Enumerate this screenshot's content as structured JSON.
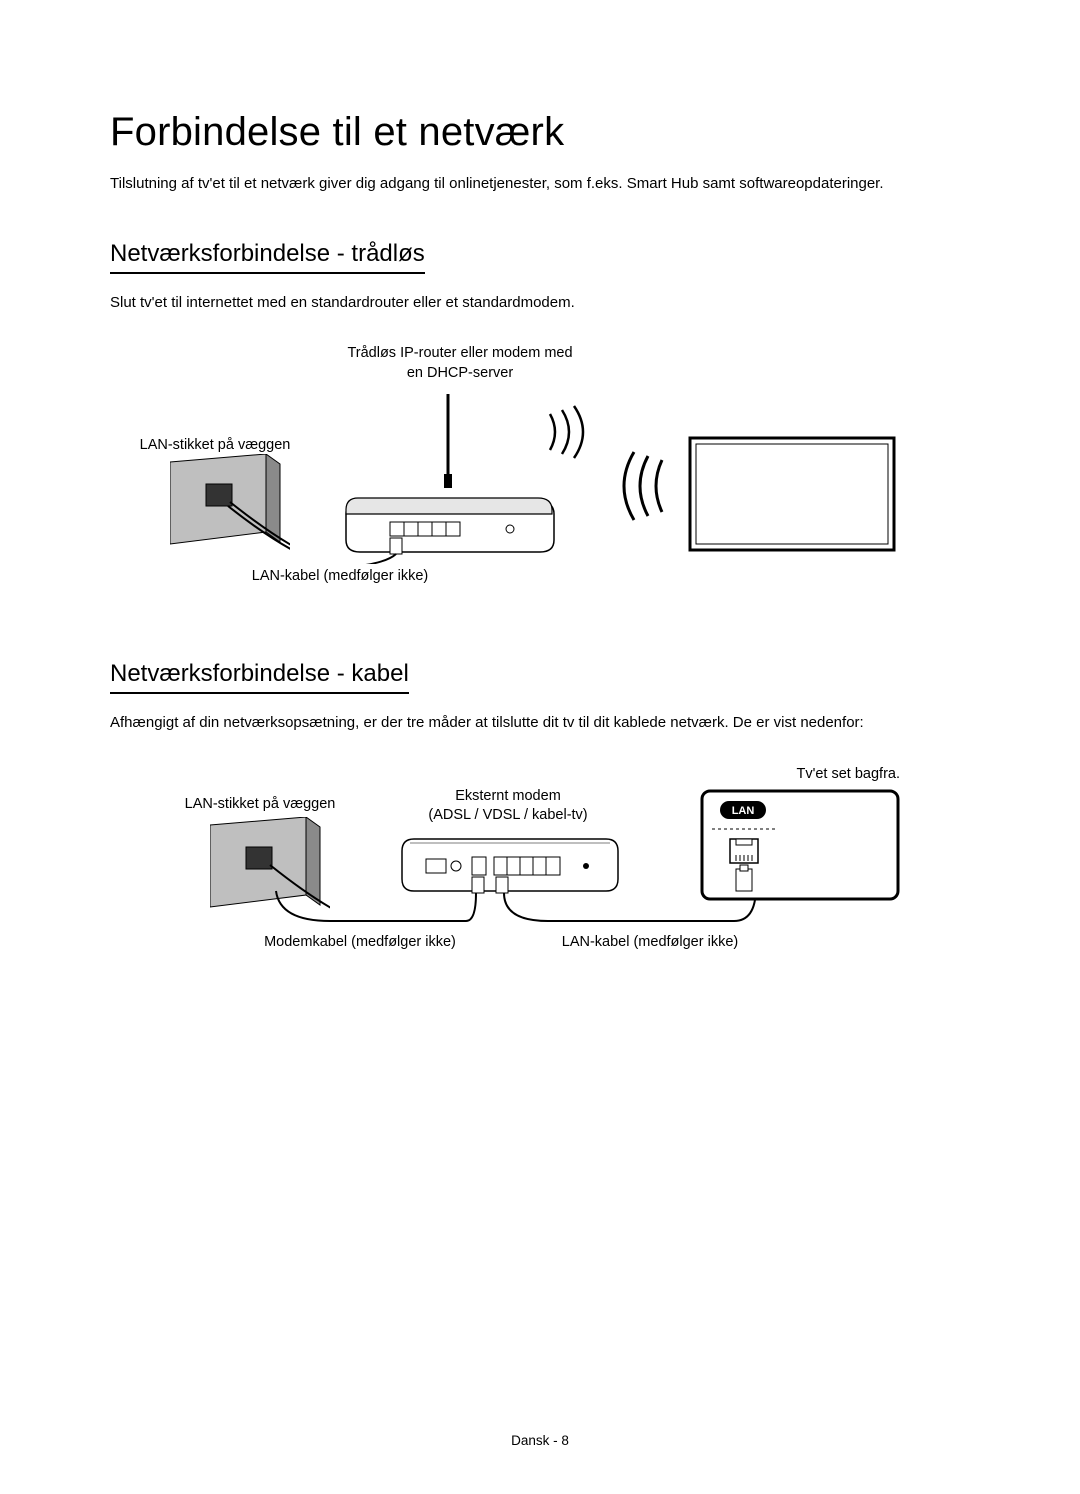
{
  "title": "Forbindelse til et netværk",
  "intro": "Tilslutning af tv'et til et netværk giver dig adgang til onlinetjenester, som f.eks. Smart Hub samt softwareopdateringer.",
  "wireless": {
    "heading": "Netværksforbindelse - trådløs",
    "desc": "Slut tv'et til internettet med en standardrouter eller et standardmodem.",
    "router_label": "Trådløs IP-router eller modem med\nen DHCP-server",
    "wall_label": "LAN-stikket på væggen",
    "cable_label": "LAN-kabel (medfølger ikke)"
  },
  "wired": {
    "heading": "Netværksforbindelse - kabel",
    "desc": "Afhængigt af din netværksopsætning, er der tre måder at tilslutte dit tv til dit kablede netværk. De er vist nedenfor:",
    "tv_back_label": "Tv'et set bagfra.",
    "wall_label": "LAN-stikket på væggen",
    "modem_label": "Eksternt modem\n(ADSL / VDSL / kabel-tv)",
    "modem_cable_label": "Modemkabel (medfølger ikke)",
    "lan_cable_label": "LAN-kabel (medfølger ikke)",
    "lan_port_text": "LAN"
  },
  "footer": "Dansk - 8",
  "colors": {
    "text": "#000000",
    "stroke": "#000000",
    "light_fill": "#ffffff",
    "grey_fill": "#bfbfbf",
    "dark_fill": "#6a6a6a"
  }
}
